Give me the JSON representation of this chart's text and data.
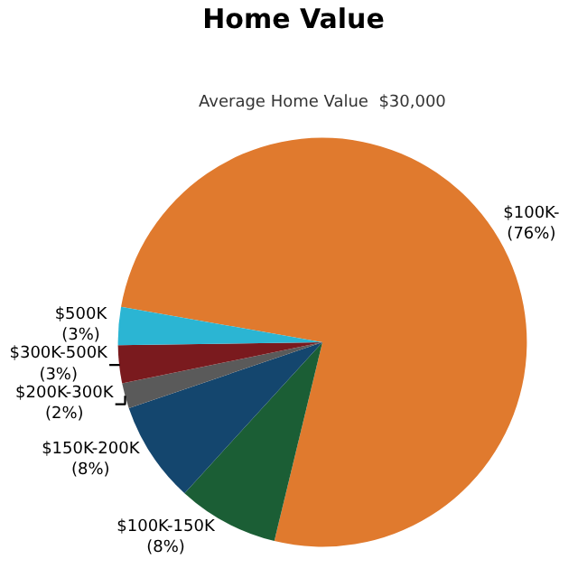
{
  "chart_data": {
    "type": "pie",
    "title": "Home Value",
    "subtitle": "Average Home Value  $30,000",
    "categories": [
      "$100K-",
      "$100K-150K",
      "$150K-200K",
      "$200K-300K",
      "$300K-500K",
      "$500K"
    ],
    "values": [
      76,
      8,
      8,
      2,
      3,
      3
    ],
    "value_labels": [
      "(76%)",
      "(8%)",
      "(8%)",
      "(2%)",
      "(3%)",
      "(3%)"
    ],
    "colors": [
      "#e07a2e",
      "#1b5e35",
      "#14466e",
      "#5a5a5a",
      "#7a1a1e",
      "#2bb5d3"
    ],
    "legend": false
  }
}
